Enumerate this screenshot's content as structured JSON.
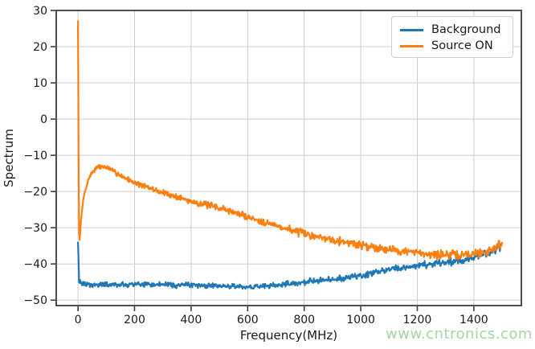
{
  "watermark": {
    "text": "www.cntronics.com",
    "color": "#a6d4a6"
  },
  "chart_data": {
    "type": "line",
    "title": "",
    "xlabel": "Frequency(MHz)",
    "ylabel": "Spectrum",
    "xlim": [
      -77,
      1568
    ],
    "ylim": [
      -51.5,
      30
    ],
    "x_ticks": [
      0,
      200,
      400,
      600,
      800,
      1000,
      1200,
      1400
    ],
    "y_ticks": [
      -50,
      -40,
      -30,
      -20,
      -10,
      0,
      10,
      20,
      30
    ],
    "grid": true,
    "grid_color": "#cccccc",
    "axis_color": "#3b3b3b",
    "text_color": "#1a1a1a",
    "tick_font_px": 14,
    "label_font_px": 15,
    "legend": {
      "position": "upper right",
      "entries": [
        "Background",
        "Source ON"
      ]
    },
    "x_range": [
      0,
      1500
    ],
    "x_step": 2,
    "series": [
      {
        "name": "Background",
        "color": "#1f77b4",
        "line_width": 2.2,
        "seed": 42,
        "noise_amp": [
          [
            0,
            0.55
          ],
          [
            600,
            0.55
          ],
          [
            1000,
            0.7
          ],
          [
            1500,
            0.85
          ]
        ],
        "anchors": [
          [
            0,
            -33.5
          ],
          [
            4,
            -44.5
          ],
          [
            10,
            -45.6
          ],
          [
            50,
            -45.8
          ],
          [
            100,
            -45.7
          ],
          [
            150,
            -45.9
          ],
          [
            200,
            -45.6
          ],
          [
            250,
            -45.8
          ],
          [
            300,
            -45.6
          ],
          [
            350,
            -45.9
          ],
          [
            400,
            -45.7
          ],
          [
            450,
            -46.0
          ],
          [
            500,
            -46.1
          ],
          [
            550,
            -46.3
          ],
          [
            600,
            -46.4
          ],
          [
            650,
            -46.2
          ],
          [
            700,
            -45.9
          ],
          [
            750,
            -45.5
          ],
          [
            800,
            -45.0
          ],
          [
            850,
            -44.6
          ],
          [
            900,
            -44.3
          ],
          [
            950,
            -43.8
          ],
          [
            1000,
            -43.3
          ],
          [
            1050,
            -42.4
          ],
          [
            1100,
            -41.6
          ],
          [
            1150,
            -41.0
          ],
          [
            1200,
            -40.4
          ],
          [
            1250,
            -40.0
          ],
          [
            1300,
            -39.7
          ],
          [
            1350,
            -39.2
          ],
          [
            1400,
            -38.2
          ],
          [
            1430,
            -37.5
          ],
          [
            1460,
            -36.8
          ],
          [
            1480,
            -36.0
          ],
          [
            1490,
            -35.2
          ],
          [
            1500,
            -34.8
          ]
        ]
      },
      {
        "name": "Source ON",
        "color": "#ff7f0e",
        "line_width": 2.2,
        "seed": 7,
        "noise_amp": [
          [
            0,
            0.4
          ],
          [
            150,
            0.55
          ],
          [
            800,
            0.85
          ],
          [
            1500,
            1.0
          ]
        ],
        "anchors": [
          [
            0,
            27
          ],
          [
            3,
            -30
          ],
          [
            6,
            -33
          ],
          [
            12,
            -27
          ],
          [
            20,
            -21.5
          ],
          [
            30,
            -18.5
          ],
          [
            40,
            -16.0
          ],
          [
            55,
            -14.2
          ],
          [
            70,
            -13.3
          ],
          [
            85,
            -13.1
          ],
          [
            100,
            -13.3
          ],
          [
            120,
            -14.2
          ],
          [
            150,
            -15.5
          ],
          [
            180,
            -16.8
          ],
          [
            200,
            -17.5
          ],
          [
            250,
            -19.0
          ],
          [
            300,
            -20.3
          ],
          [
            350,
            -21.5
          ],
          [
            400,
            -22.7
          ],
          [
            450,
            -23.6
          ],
          [
            500,
            -24.5
          ],
          [
            550,
            -25.7
          ],
          [
            600,
            -27.0
          ],
          [
            650,
            -28.2
          ],
          [
            700,
            -29.4
          ],
          [
            750,
            -30.5
          ],
          [
            800,
            -31.7
          ],
          [
            850,
            -32.5
          ],
          [
            900,
            -33.2
          ],
          [
            950,
            -34.0
          ],
          [
            1000,
            -34.8
          ],
          [
            1050,
            -35.4
          ],
          [
            1100,
            -35.9
          ],
          [
            1150,
            -36.5
          ],
          [
            1200,
            -37.0
          ],
          [
            1250,
            -37.3
          ],
          [
            1300,
            -37.5
          ],
          [
            1350,
            -37.6
          ],
          [
            1400,
            -37.2
          ],
          [
            1430,
            -36.8
          ],
          [
            1460,
            -36.2
          ],
          [
            1480,
            -35.3
          ],
          [
            1492,
            -34.3
          ],
          [
            1500,
            -34.6
          ]
        ]
      }
    ]
  }
}
